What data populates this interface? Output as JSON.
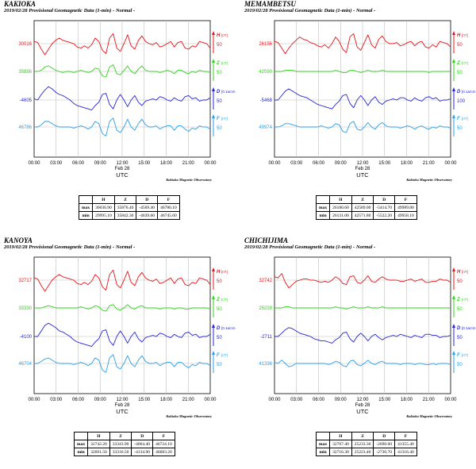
{
  "chart_data": [
    {
      "type": "line",
      "station": "KAKIOKA",
      "title": "2019/02/28  Provisional Geomagnetic Data (1-min)  - Normal -",
      "x_ticks": [
        "00:00",
        "03:00",
        "06:00",
        "09:00",
        "12:00",
        "15:00",
        "18:00",
        "21:00",
        "00:00"
      ],
      "date_label": "Feb 28",
      "xlabel": "UTC",
      "observatory": "Kakioka Magnetic Observatory",
      "series": [
        {
          "name": "H",
          "unit": "[nT]",
          "color": "#e8141a",
          "base": "30016",
          "scale": "50",
          "values": [
            0.2,
            0.1,
            -0.5,
            -1,
            -0.5,
            0,
            0.3,
            0.5,
            0.3,
            0.2,
            0.1,
            0,
            -0.3,
            -0.4,
            -0.2,
            -0.4,
            -0.1,
            0.5,
            0.2,
            -0.6,
            -0.9,
            0.5,
            0.9,
            -0.4,
            -0.7,
            0,
            0.8,
            -0.2,
            -0.5,
            0.3,
            0.7,
            0.2,
            0,
            -0.1,
            0.1,
            -0.3,
            -0.2,
            0,
            0.2,
            -0.3,
            0.1,
            0.2,
            -0.4,
            -0.5,
            -0.2,
            -0.3,
            0.2,
            0.1,
            0,
            -0.4
          ]
        },
        {
          "name": "Z",
          "unit": "[nT]",
          "color": "#2fd21c",
          "base": "35856",
          "scale": "50",
          "values": [
            0,
            0,
            0.1,
            0.4,
            0.5,
            0.3,
            0.1,
            0,
            -0.1,
            0,
            0,
            -0.1,
            0,
            0.1,
            0,
            -0.1,
            0,
            0.3,
            0.2,
            -0.4,
            -0.5,
            0.4,
            0.6,
            -0.2,
            -0.3,
            0.1,
            0.5,
            0,
            -0.2,
            0.2,
            0.5,
            0.1,
            0,
            0,
            0,
            -0.1,
            0,
            0.1,
            0,
            -0.2,
            0.1,
            0.1,
            -0.1,
            -0.2,
            0,
            -0.1,
            0.1,
            0,
            0,
            -0.1
          ]
        },
        {
          "name": "D",
          "unit": "[0.1arcm",
          "color": "#2424d4",
          "base": "-4605",
          "scale": "50",
          "values": [
            0.1,
            0,
            0.5,
            0.9,
            1.2,
            1,
            0.7,
            0.5,
            0.4,
            0.2,
            0,
            -0.3,
            -0.5,
            -0.6,
            -0.7,
            -0.8,
            -0.9,
            -0.5,
            -0.2,
            0.5,
            0.6,
            -0.4,
            -0.8,
            0,
            0.5,
            0,
            -0.6,
            0,
            0.4,
            -0.2,
            -0.5,
            -0.1,
            0,
            0.1,
            0,
            0.3,
            0.2,
            0,
            -0.1,
            0.2,
            0,
            -0.1,
            0.3,
            0.4,
            0.1,
            0.2,
            -0.1,
            0,
            0,
            0.2
          ]
        },
        {
          "name": "F",
          "unit": "[nT]",
          "color": "#2b9ee8",
          "base": "46786",
          "scale": "50",
          "values": [
            0,
            0,
            0.2,
            0.5,
            0.5,
            0.3,
            0.1,
            0,
            0,
            0,
            0,
            -0.1,
            0,
            0.1,
            0,
            -0.2,
            0,
            0.5,
            0.3,
            -0.6,
            -0.8,
            0.5,
            0.8,
            -0.3,
            -0.5,
            0,
            0.7,
            0,
            -0.3,
            0.3,
            0.7,
            0.2,
            0,
            0,
            0.1,
            -0.2,
            0,
            0.1,
            0.1,
            -0.3,
            0.1,
            0.1,
            -0.2,
            -0.4,
            -0.1,
            -0.2,
            0.1,
            0,
            0,
            -0.2
          ]
        }
      ],
      "table": {
        "headers": [
          "",
          "H",
          "Z",
          "D",
          "F"
        ],
        "rows": [
          [
            "max",
            "30036.90",
            "35876.40",
            "-4569.40",
            "46786.10"
          ],
          [
            "min",
            "29995.10",
            "35842.30",
            "-4639.60",
            "46745.60"
          ]
        ]
      }
    },
    {
      "type": "line",
      "station": "MEMAMBETSU",
      "title": "2019/02/28  Provisional Geomagnetic Data (1-min)  - Normal -",
      "x_ticks": [
        "00:00",
        "03:00",
        "06:00",
        "09:00",
        "12:00",
        "15:00",
        "18:00",
        "21:00",
        "00:00"
      ],
      "date_label": "Feb 28",
      "xlabel": "UTC",
      "observatory": "Kakioka Magnetic Observatory",
      "series": [
        {
          "name": "H",
          "unit": "[nT]",
          "color": "#e8141a",
          "base": "26156",
          "scale": "50",
          "values": [
            0.2,
            0.1,
            -0.4,
            -0.9,
            -0.4,
            0,
            0.3,
            0.6,
            0.4,
            0.3,
            0.1,
            0,
            -0.2,
            -0.3,
            -0.1,
            -0.4,
            0,
            0.6,
            0.2,
            -0.5,
            -0.8,
            0.6,
            0.9,
            -0.3,
            -0.6,
            0.1,
            0.8,
            -0.1,
            -0.4,
            0.4,
            0.7,
            0.2,
            0,
            0,
            0.1,
            -0.2,
            -0.1,
            0.1,
            0.2,
            -0.2,
            0.1,
            0.2,
            -0.3,
            -0.4,
            -0.1,
            -0.3,
            0.2,
            0.1,
            0,
            -0.3
          ]
        },
        {
          "name": "Z",
          "unit": "[nT]",
          "color": "#2fd21c",
          "base": "42590",
          "scale": "50",
          "values": [
            0,
            0,
            0,
            0.1,
            0.1,
            0.1,
            0,
            0,
            0,
            0,
            0,
            0,
            0,
            0,
            0,
            0,
            0,
            0.1,
            0,
            -0.1,
            -0.1,
            0.1,
            0.1,
            0,
            -0.1,
            0,
            0.1,
            0,
            0,
            0,
            0.1,
            0,
            0,
            0,
            0,
            0,
            0,
            0,
            0,
            0,
            0,
            0,
            0,
            -0.1,
            0,
            0,
            0,
            0,
            0,
            0
          ]
        },
        {
          "name": "D",
          "unit": "[0.1arcm",
          "color": "#2424d4",
          "base": "-5468",
          "scale": "100",
          "values": [
            0,
            0,
            0.4,
            0.8,
            1,
            0.8,
            0.6,
            0.4,
            0.3,
            0.2,
            0,
            -0.2,
            -0.4,
            -0.5,
            -0.6,
            -0.7,
            -0.8,
            -0.4,
            -0.1,
            0.4,
            0.5,
            -0.3,
            -0.7,
            0,
            0.4,
            0,
            -0.5,
            0,
            0.3,
            -0.2,
            -0.4,
            -0.1,
            0,
            0.1,
            0,
            0.2,
            0.2,
            0,
            -0.1,
            0.2,
            0,
            -0.1,
            0.2,
            0.3,
            0.1,
            0.2,
            -0.1,
            0,
            0,
            0.1
          ]
        },
        {
          "name": "F",
          "unit": "[nT]",
          "color": "#2b9ee8",
          "base": "49974",
          "scale": "50",
          "values": [
            0,
            0,
            0.1,
            0.3,
            0.3,
            0.2,
            0.1,
            0,
            0,
            0,
            0,
            0,
            0,
            0.1,
            0,
            -0.1,
            0,
            0.3,
            0.2,
            -0.4,
            -0.5,
            0.3,
            0.5,
            -0.2,
            -0.3,
            0,
            0.4,
            0,
            -0.2,
            0.2,
            0.4,
            0.1,
            0,
            0,
            0,
            -0.1,
            0,
            0.1,
            0,
            -0.2,
            0,
            0.1,
            -0.1,
            -0.2,
            0,
            -0.1,
            0.1,
            0,
            0,
            -0.1
          ]
        }
      ],
      "table": {
        "headers": [
          "",
          "H",
          "Z",
          "D",
          "F"
        ],
        "rows": [
          [
            "max",
            "26180.60",
            "42589.00",
            "-5414.70",
            "49989.80"
          ],
          [
            "min",
            "26131.00",
            "42571.80",
            "-5522.20",
            "49958.10"
          ]
        ]
      }
    },
    {
      "type": "line",
      "station": "KANOYA",
      "title": "2019/02/28  Provisional Geomagnetic Data (1-min)  - Normal -",
      "x_ticks": [
        "00:00",
        "03:00",
        "06:00",
        "09:00",
        "12:00",
        "15:00",
        "18:00",
        "21:00",
        "00:00"
      ],
      "date_label": "Feb 28",
      "xlabel": "UTC",
      "observatory": "Kakioka Magnetic Observatory",
      "series": [
        {
          "name": "H",
          "unit": "[nT]",
          "color": "#e8141a",
          "base": "32717",
          "scale": "50",
          "values": [
            0.2,
            0.1,
            -0.5,
            -1,
            -0.5,
            0,
            0.3,
            0.5,
            0.3,
            0.2,
            0.1,
            0,
            -0.3,
            -0.4,
            -0.2,
            -0.4,
            -0.1,
            0.5,
            0.2,
            -0.6,
            -0.9,
            0.5,
            0.9,
            -0.4,
            -0.7,
            0,
            0.8,
            -0.2,
            -0.5,
            0.3,
            0.7,
            0.2,
            0,
            -0.1,
            0.1,
            -0.3,
            -0.2,
            0,
            0.2,
            -0.3,
            0.1,
            0.2,
            -0.4,
            -0.5,
            -0.2,
            -0.3,
            0.2,
            0.1,
            0,
            -0.4
          ]
        },
        {
          "name": "Z",
          "unit": "[nT]",
          "color": "#2fd21c",
          "base": "33330",
          "scale": "50",
          "values": [
            0,
            0,
            0,
            0.1,
            0.2,
            0.1,
            0,
            0,
            0,
            0,
            0,
            0,
            0,
            0.1,
            0,
            -0.1,
            0,
            0.2,
            0.1,
            -0.2,
            -0.3,
            0.2,
            0.3,
            -0.1,
            -0.2,
            0,
            0.3,
            0,
            -0.1,
            0.1,
            0.2,
            0,
            0,
            0,
            0,
            -0.1,
            0,
            0,
            0,
            -0.1,
            0,
            0,
            -0.1,
            -0.1,
            0,
            0,
            0,
            0,
            0,
            -0.1
          ]
        },
        {
          "name": "D",
          "unit": "[0.1arcm",
          "color": "#2424d4",
          "base": "-4100",
          "scale": "50",
          "values": [
            0,
            0,
            0.5,
            1,
            1.2,
            1,
            0.8,
            0.5,
            0.4,
            0.2,
            0,
            -0.3,
            -0.5,
            -0.6,
            -0.7,
            -0.8,
            -0.9,
            -0.5,
            -0.2,
            0.5,
            0.6,
            -0.4,
            -0.8,
            0,
            0.5,
            0,
            -0.6,
            0,
            0.4,
            -0.2,
            -0.5,
            -0.1,
            0,
            0.1,
            0,
            0.3,
            0.2,
            0,
            -0.1,
            0.2,
            0,
            -0.1,
            0.3,
            0.4,
            0.1,
            0.2,
            -0.1,
            0,
            0,
            0.2
          ]
        },
        {
          "name": "F",
          "unit": "[nT]",
          "color": "#2b9ee8",
          "base": "46704",
          "scale": "50",
          "values": [
            0,
            0,
            0.2,
            0.4,
            0.5,
            0.3,
            0.1,
            0,
            0,
            0,
            0,
            -0.1,
            0,
            0.1,
            0,
            -0.2,
            0,
            0.5,
            0.3,
            -0.6,
            -0.8,
            0.5,
            0.8,
            -0.3,
            -0.5,
            0,
            0.7,
            0,
            -0.3,
            0.3,
            0.7,
            0.2,
            0,
            0,
            0.1,
            -0.2,
            0,
            0.1,
            0.1,
            -0.3,
            0.1,
            0.1,
            -0.2,
            -0.4,
            -0.1,
            -0.2,
            0.1,
            0,
            0,
            -0.2
          ]
        }
      ],
      "table": {
        "headers": [
          "",
          "H",
          "Z",
          "D",
          "F"
        ],
        "rows": [
          [
            "max",
            "32742.20",
            "33343.90",
            "-4064.40",
            "46724.10"
          ],
          [
            "min",
            "32691.50",
            "33316.50",
            "-4134.90",
            "46683.20"
          ]
        ]
      }
    },
    {
      "type": "line",
      "station": "CHICHIJIMA",
      "title": "2019/02/28  Provisional Geomagnetic Data (1-min)  - Normal -",
      "x_ticks": [
        "00:00",
        "03:00",
        "06:00",
        "09:00",
        "12:00",
        "15:00",
        "18:00",
        "21:00",
        "00:00"
      ],
      "date_label": "Feb 28",
      "xlabel": "UTC",
      "observatory": "Kakioka Magnetic Observatory",
      "series": [
        {
          "name": "H",
          "unit": "[nT]",
          "color": "#e8141a",
          "base": "32742",
          "scale": "50",
          "values": [
            0.3,
            0.2,
            0.6,
            -0.2,
            -0.7,
            -0.4,
            -0.1,
            0,
            0.1,
            0.1,
            0,
            0,
            -0.1,
            -0.2,
            -0.1,
            -0.2,
            0,
            0.3,
            0.1,
            -0.3,
            -0.4,
            0.3,
            0.4,
            -0.2,
            -0.3,
            0,
            0.4,
            -0.1,
            -0.2,
            0.1,
            0.3,
            0.1,
            0,
            0,
            0,
            -0.1,
            -0.1,
            0,
            0.1,
            -0.1,
            0,
            0.1,
            -0.2,
            -0.2,
            -0.1,
            -0.1,
            0.1,
            0,
            0,
            -0.2
          ]
        },
        {
          "name": "Z",
          "unit": "[nT]",
          "color": "#2fd21c",
          "base": "25228",
          "scale": "50",
          "values": [
            0,
            0,
            0,
            0.1,
            0.1,
            0,
            0,
            0,
            0,
            0,
            0,
            0,
            0,
            0,
            0,
            0,
            0,
            0.1,
            0,
            0,
            -0.1,
            0,
            0.1,
            0,
            0,
            0,
            0.1,
            0,
            0,
            0,
            0.1,
            0,
            0,
            0,
            0,
            0,
            0,
            0,
            0,
            0,
            0,
            0,
            0,
            0,
            0,
            0,
            0,
            0,
            0,
            0
          ]
        },
        {
          "name": "D",
          "unit": "[0.1arcm",
          "color": "#2424d4",
          "base": "-2711",
          "scale": "50",
          "values": [
            0,
            0,
            0.3,
            0.6,
            0.8,
            0.7,
            0.5,
            0.3,
            0.2,
            0.1,
            0,
            -0.2,
            -0.3,
            -0.4,
            -0.4,
            -0.5,
            -0.6,
            -0.3,
            -0.1,
            0.3,
            0.4,
            -0.2,
            -0.5,
            0,
            0.3,
            0,
            -0.4,
            0,
            0.2,
            -0.1,
            -0.3,
            -0.1,
            0,
            0.1,
            0,
            0.2,
            0.1,
            0,
            -0.1,
            0.1,
            0,
            -0.1,
            0.2,
            0.2,
            0.1,
            0.1,
            -0.1,
            0,
            0,
            0.1
          ]
        },
        {
          "name": "F",
          "unit": "[nT]",
          "color": "#2b9ee8",
          "base": "41336",
          "scale": "50",
          "values": [
            0.1,
            0,
            0.3,
            0,
            -0.3,
            -0.2,
            0,
            0,
            0,
            0,
            0,
            0,
            0,
            0,
            0,
            -0.1,
            0,
            0.2,
            0.1,
            -0.2,
            -0.3,
            0.2,
            0.3,
            -0.1,
            -0.2,
            0,
            0.3,
            0,
            -0.1,
            0.1,
            0.2,
            0,
            0,
            0,
            0,
            -0.1,
            0,
            0,
            0,
            -0.1,
            0,
            0,
            -0.1,
            -0.1,
            0,
            -0.1,
            0,
            0,
            0,
            -0.1
          ]
        }
      ],
      "table": {
        "headers": [
          "",
          "H",
          "Z",
          "D",
          "F"
        ],
        "rows": [
          [
            "max",
            "32767.40",
            "25233.30",
            "-2690.60",
            "41355.40"
          ],
          [
            "min",
            "32716.30",
            "25223.40",
            "-2730.70",
            "41316.40"
          ]
        ]
      }
    }
  ]
}
